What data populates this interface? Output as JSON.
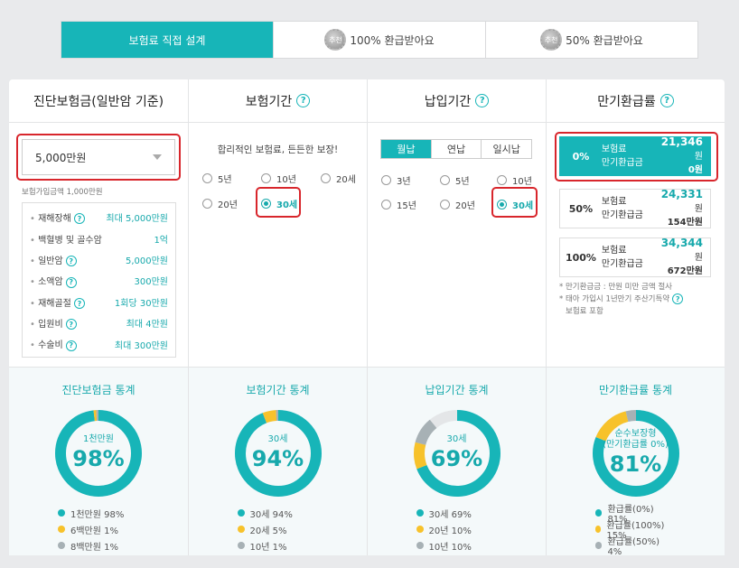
{
  "tabs": [
    {
      "label": "보험료 직접 설계",
      "active": true
    },
    {
      "label": "100% 환급받아요",
      "badge": "추천"
    },
    {
      "label": "50% 환급받아요",
      "badge": "추천"
    }
  ],
  "colors": {
    "accent": "#17b5b8",
    "yellow": "#f7c22b",
    "gray": "#a7b1b5",
    "track": "#e4e6e8"
  },
  "col1": {
    "title": "진단보험금(일반암 기준)",
    "select_value": "5,000만원",
    "hint": "보험가입금액 1,000만원",
    "coverages": [
      {
        "name": "재해장해",
        "value": "최대 5,000만원",
        "help": true
      },
      {
        "name": "백혈병 및 골수암",
        "value": "1억",
        "help": false
      },
      {
        "name": "일반암",
        "value": "5,000만원",
        "help": true
      },
      {
        "name": "소액암",
        "value": "300만원",
        "help": true
      },
      {
        "name": "재해골절",
        "value": "1회당 30만원",
        "help": true
      },
      {
        "name": "입원비",
        "value": "최대 4만원",
        "help": true
      },
      {
        "name": "수술비",
        "value": "최대 300만원",
        "help": true
      }
    ],
    "stats": {
      "title": "진단보험금 통계",
      "center_label": "1천만원",
      "center_pct": "98%",
      "legend": [
        {
          "label": "1천만원 98%",
          "value": 98,
          "color": "#17b5b8"
        },
        {
          "label": "6백만원 1%",
          "value": 1,
          "color": "#f7c22b"
        },
        {
          "label": "8백만원 1%",
          "value": 1,
          "color": "#a7b1b5"
        }
      ]
    }
  },
  "col2": {
    "title": "보험기간",
    "phrase": "합리적인 보험료, 든든한 보장!",
    "options": [
      "5년",
      "10년",
      "20세",
      "20년",
      "30세"
    ],
    "selected": "30세",
    "stats": {
      "title": "보험기간 통계",
      "center_label": "30세",
      "center_pct": "94%",
      "legend": [
        {
          "label": "30세 94%",
          "value": 94,
          "color": "#17b5b8"
        },
        {
          "label": "20세 5%",
          "value": 5,
          "color": "#f7c22b"
        },
        {
          "label": "10년 1%",
          "value": 1,
          "color": "#a7b1b5"
        }
      ]
    }
  },
  "col3": {
    "title": "납입기간",
    "segments": [
      "월납",
      "연납",
      "일시납"
    ],
    "active_segment": "월납",
    "options": [
      "3년",
      "5년",
      "10년",
      "15년",
      "20년",
      "30세"
    ],
    "selected": "30세",
    "stats": {
      "title": "납입기간 통계",
      "center_label": "30세",
      "center_pct": "69%",
      "legend": [
        {
          "label": "30세 69%",
          "value": 69,
          "color": "#17b5b8"
        },
        {
          "label": "20년 10%",
          "value": 10,
          "color": "#f7c22b"
        },
        {
          "label": "10년 10%",
          "value": 10,
          "color": "#a7b1b5"
        }
      ]
    }
  },
  "col4": {
    "title": "만기환급률",
    "rates": [
      {
        "pct": "0%",
        "label1": "보험료",
        "label2": "만기환급금",
        "amount1": "21,346",
        "unit1": "원",
        "amount2": "0",
        "unit2": "원",
        "active": true
      },
      {
        "pct": "50%",
        "label1": "보험료",
        "label2": "만기환급금",
        "amount1": "24,331",
        "unit1": "원",
        "amount2": "154",
        "unit2": "만원",
        "active": false
      },
      {
        "pct": "100%",
        "label1": "보험료",
        "label2": "만기환급금",
        "amount1": "34,344",
        "unit1": "원",
        "amount2": "672",
        "unit2": "만원",
        "active": false
      }
    ],
    "note1": "* 만기환급금 : 만원 미만 금액 절사",
    "note2": "* 태아 가입시 1년만기 주산기특약",
    "note3": "보험료 포함",
    "stats": {
      "title": "만기환급률 통계",
      "center_label": "순수보장형\n(만기환급률 0%)",
      "center_pct": "81%",
      "legend": [
        {
          "label": "환급률(0%) 81%",
          "value": 81,
          "color": "#17b5b8"
        },
        {
          "label": "환급률(100%) 15%",
          "value": 15,
          "color": "#f7c22b"
        },
        {
          "label": "환급률(50%) 4%",
          "value": 4,
          "color": "#a7b1b5"
        }
      ]
    }
  }
}
